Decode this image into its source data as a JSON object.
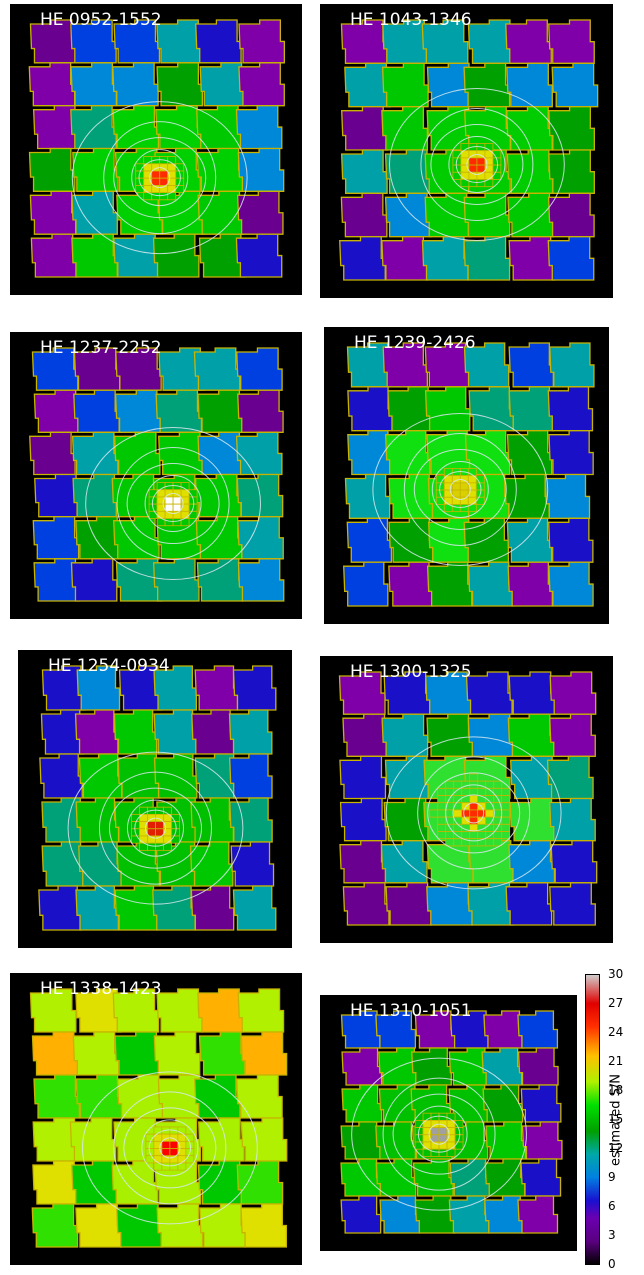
{
  "panels": [
    {
      "label": "HE 0952-1552",
      "bg": "#7f00a8",
      "core": "#ff2a00",
      "mid": "#00d000"
    },
    {
      "label": "HE 1043-1346",
      "bg": "#6a0090",
      "core": "#ff2a00",
      "mid": "#00cc00"
    },
    {
      "label": "HE 1237-2252",
      "bg": "#7f00a8",
      "core": "#ffffff",
      "mid": "#00c800"
    },
    {
      "label": "HE 1239-2426",
      "bg": "#6a0090",
      "core": "#d8d000",
      "mid": "#10e010"
    },
    {
      "label": "HE 1254-0934",
      "bg": "#5a0080",
      "core": "#e02000",
      "mid": "#00c000"
    },
    {
      "label": "HE 1300-1325",
      "bg": "#6a0090",
      "core": "#ff2a00",
      "mid": "#30e030"
    },
    {
      "label": "HE 1338-1423",
      "bg": "#e0e000",
      "core": "#ff0000",
      "mid": "#a8f000"
    },
    {
      "label": "HE 1310-1051",
      "bg": "#6a0090",
      "core": "#a0a0a0",
      "mid": "#00c000"
    }
  ],
  "colorbar": {
    "label": "estimated S/N",
    "ticks": [
      "0",
      "3",
      "6",
      "9",
      "12",
      "15",
      "18",
      "21",
      "24",
      "27",
      "30"
    ],
    "min": 0,
    "max": 30
  },
  "palette": [
    "#000000",
    "#3a0050",
    "#6a0090",
    "#7f00a8",
    "#1a10c8",
    "#0040e0",
    "#0088d8",
    "#00a0a8",
    "#00a078",
    "#00a000",
    "#00c800",
    "#30e000",
    "#b0f000",
    "#e0e000",
    "#ffb000",
    "#ff4000",
    "#e00000",
    "#c0c0c0"
  ]
}
